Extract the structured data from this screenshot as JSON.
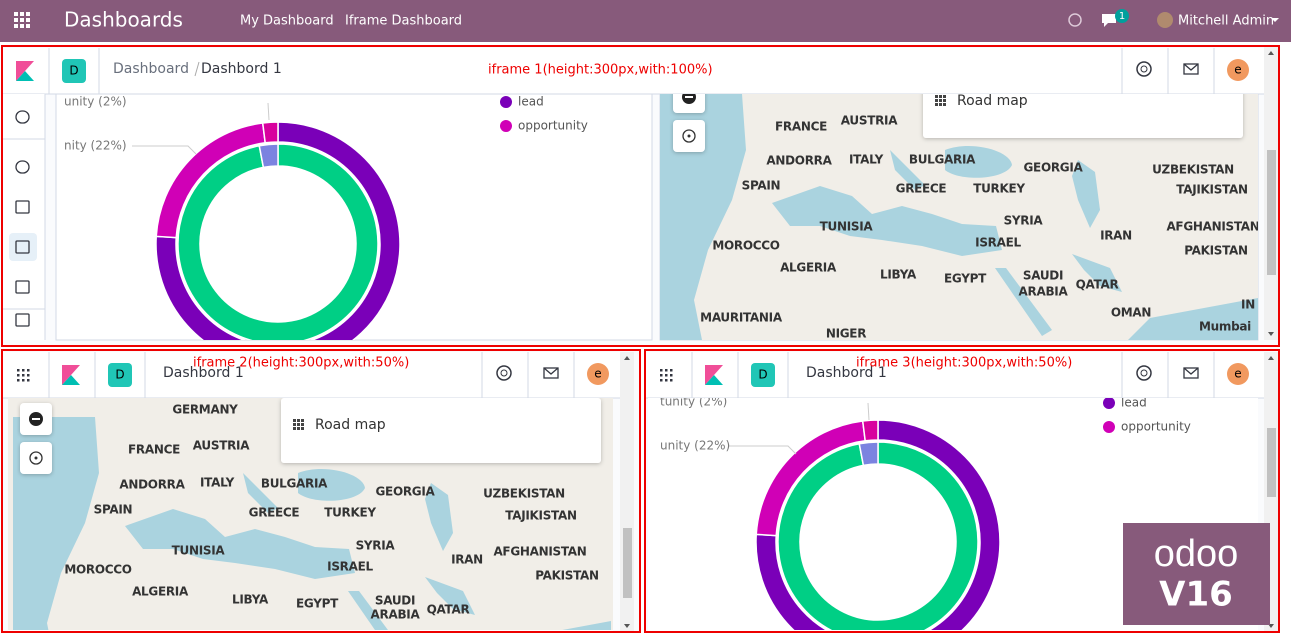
{
  "navbar": {
    "title": "Dashboards",
    "menu": [
      "My Dashboard",
      "Iframe Dashboard"
    ],
    "badge": "1",
    "user": "Mitchell Admin"
  },
  "iframes": [
    {
      "note": "iframe 1(height:300px,with:100%)",
      "avatar": "D",
      "breadcrumb": [
        "Dashboard",
        "Dashbord 1"
      ],
      "user_initial": "e",
      "donut_labels": [
        "unity (2%)",
        "nity (22%)"
      ],
      "legend": [
        "lead",
        "opportunity"
      ],
      "map_button": "Road map"
    },
    {
      "note": "iframe 2(height:300px,with:50%)",
      "avatar": "D",
      "breadcrumb": [
        "Dashbord 1"
      ],
      "user_initial": "e",
      "map_button": "Road map"
    },
    {
      "note": "iframe 3(height:300px,with:50%)",
      "avatar": "D",
      "breadcrumb": [
        "Dashbord 1"
      ],
      "user_initial": "e",
      "donut_labels": [
        "tunity (2%)",
        "unity (22%)"
      ],
      "legend": [
        "lead",
        "opportunity"
      ]
    }
  ],
  "donut": {
    "outer": [
      {
        "value": 76,
        "color": "#7a00b8"
      },
      {
        "value": 22,
        "color": "#d000b6"
      },
      {
        "value": 2,
        "color": "#d8009e"
      }
    ],
    "inner": [
      {
        "value": 97,
        "color": "#00cf85"
      },
      {
        "value": 3,
        "color": "#7b83e0"
      }
    ]
  },
  "map1_labels": [
    "FRANCE",
    "AUSTRIA",
    "ANDORRA",
    "ITALY",
    "BULGARIA",
    "GEORGIA",
    "UZBEKISTAN",
    "SPAIN",
    "GREECE",
    "TURKEY",
    "TAJIKISTAN",
    "SYRIA",
    "TUNISIA",
    "AFGHANISTAN",
    "IRAN",
    "MOROCCO",
    "ISRAEL",
    "PAKISTAN",
    "ALGERIA",
    "LIBYA",
    "EGYPT",
    "SAUDI",
    "ARABIA",
    "QATAR",
    "MAURITANIA",
    "OMAN",
    "NIGER",
    "Mumbai",
    "IN"
  ],
  "map2_labels": [
    "GERMANY",
    "FRANCE",
    "AUSTRIA",
    "ANDORRA",
    "ITALY",
    "BULGARIA",
    "GEORGIA",
    "UZBEKISTAN",
    "SPAIN",
    "GREECE",
    "TURKEY",
    "TAJIKISTAN",
    "SYRIA",
    "TUNISIA",
    "AFGHANISTAN",
    "IRAN",
    "MOROCCO",
    "ISRAEL",
    "PAKISTAN",
    "ALGERIA",
    "LIBYA",
    "EGYPT",
    "SAUDI",
    "ARABIA",
    "QATAR"
  ],
  "watermark": {
    "brand": "odoo",
    "version": "V16"
  }
}
